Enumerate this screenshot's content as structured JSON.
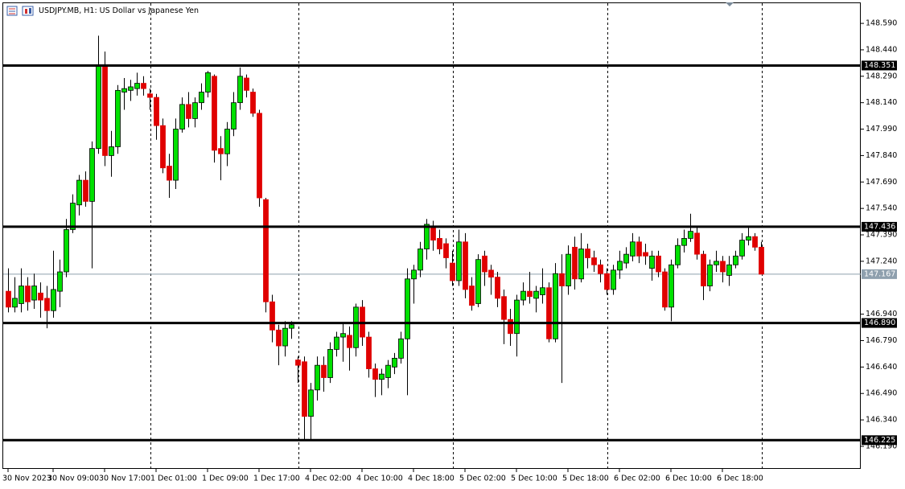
{
  "chart_data": {
    "type": "candlestick",
    "title": "USDJPY.MB, H1:  US Dollar vs Japanese Yen",
    "categories": [
      "30 Nov 2023",
      null,
      null,
      null,
      null,
      null,
      null,
      "30 Nov 09:00",
      null,
      null,
      null,
      null,
      null,
      null,
      null,
      "30 Nov 17:00",
      null,
      null,
      null,
      null,
      null,
      null,
      null,
      "1 Dec 01:00",
      null,
      null,
      null,
      null,
      null,
      null,
      null,
      "1 Dec 09:00",
      null,
      null,
      null,
      null,
      null,
      null,
      null,
      "1 Dec 17:00",
      null,
      null,
      null,
      null,
      null,
      null,
      null,
      "4 Dec 02:00",
      null,
      null,
      null,
      null,
      null,
      null,
      null,
      "4 Dec 10:00",
      null,
      null,
      null,
      null,
      null,
      null,
      null,
      "4 Dec 18:00",
      null,
      null,
      null,
      null,
      null,
      null,
      null,
      "5 Dec 02:00",
      null,
      null,
      null,
      null,
      null,
      null,
      null,
      "5 Dec 10:00",
      null,
      null,
      null,
      null,
      null,
      null,
      null,
      "5 Dec 18:00",
      null,
      null,
      null,
      null,
      null,
      null,
      null,
      "6 Dec 02:00",
      null,
      null,
      null,
      null,
      null,
      null,
      null,
      "6 Dec 10:00",
      null,
      null,
      null,
      null,
      null,
      null,
      null,
      "6 Dec 18:00",
      null,
      null,
      null,
      null,
      null,
      null
    ],
    "open": [
      147.07,
      146.98,
      147.0,
      147.1,
      147.02,
      147.06,
      147.03,
      146.96,
      147.07,
      147.18,
      147.42,
      147.56,
      147.7,
      147.58,
      147.88,
      148.35,
      147.84,
      147.89,
      148.2,
      148.21,
      148.22,
      148.25,
      148.19,
      148.17,
      148.01,
      147.78,
      147.7,
      147.99,
      148.13,
      148.05,
      148.14,
      148.2,
      148.29,
      147.88,
      147.85,
      147.99,
      148.14,
      148.28,
      148.2,
      148.08,
      147.59,
      147.01,
      146.85,
      146.76,
      146.86,
      146.68,
      146.67,
      146.36,
      146.51,
      146.65,
      146.58,
      146.74,
      146.81,
      146.82,
      146.75,
      146.98,
      146.81,
      146.63,
      146.57,
      146.58,
      146.64,
      146.69,
      146.8,
      147.14,
      147.19,
      147.31,
      147.44,
      147.37,
      147.34,
      147.23,
      147.13,
      147.35,
      147.1,
      147.0,
      147.27,
      147.19,
      147.15,
      147.04,
      146.91,
      146.83,
      147.02,
      147.07,
      147.03,
      147.05,
      147.09,
      146.8,
      147.17,
      147.1,
      147.32,
      147.14,
      147.31,
      147.26,
      147.22,
      147.17,
      147.08,
      147.19,
      147.23,
      147.27,
      147.35,
      147.29,
      147.2,
      147.27,
      147.18,
      146.98,
      147.22,
      147.33,
      147.37,
      147.4,
      147.28,
      147.1,
      147.22,
      147.24,
      147.16,
      147.22,
      147.27,
      147.36,
      147.38,
      147.32
    ],
    "high": [
      147.2,
      147.15,
      147.2,
      147.15,
      147.17,
      147.12,
      147.1,
      147.3,
      147.25,
      147.48,
      147.62,
      147.73,
      147.75,
      147.92,
      148.52,
      148.43,
      147.98,
      148.24,
      148.28,
      148.27,
      148.31,
      148.29,
      148.22,
      148.19,
      148.05,
      147.85,
      148.05,
      148.17,
      148.2,
      148.17,
      148.25,
      148.32,
      148.3,
      147.95,
      148.03,
      148.2,
      148.34,
      148.3,
      148.22,
      148.1,
      147.6,
      147.05,
      146.88,
      146.9,
      146.9,
      146.7,
      146.7,
      146.55,
      146.7,
      146.7,
      146.78,
      146.84,
      146.89,
      146.87,
      147.0,
      147.02,
      146.84,
      146.66,
      146.63,
      146.68,
      146.72,
      146.84,
      147.2,
      147.22,
      147.35,
      147.48,
      147.47,
      147.42,
      147.37,
      147.3,
      147.42,
      147.4,
      147.15,
      147.28,
      147.3,
      147.22,
      147.18,
      147.08,
      146.97,
      147.05,
      147.12,
      147.18,
      147.1,
      147.2,
      147.12,
      147.23,
      147.28,
      147.33,
      147.38,
      147.4,
      147.34,
      147.3,
      147.25,
      147.2,
      147.22,
      147.3,
      147.32,
      147.4,
      147.38,
      147.34,
      147.3,
      147.3,
      147.2,
      147.25,
      147.37,
      147.42,
      147.51,
      147.44,
      147.3,
      147.25,
      147.3,
      147.27,
      147.27,
      147.3,
      147.4,
      147.43,
      147.4,
      147.35
    ],
    "low": [
      146.95,
      146.95,
      146.95,
      146.96,
      146.97,
      146.92,
      146.86,
      146.92,
      146.98,
      147.15,
      147.4,
      147.5,
      147.55,
      147.2,
      147.85,
      147.78,
      147.72,
      147.85,
      148.1,
      148.15,
      148.18,
      148.18,
      148.1,
      147.93,
      147.74,
      147.6,
      147.65,
      147.97,
      148.0,
      148.0,
      148.1,
      148.17,
      147.8,
      147.7,
      147.78,
      147.95,
      148.1,
      148.17,
      148.06,
      147.55,
      146.95,
      146.78,
      146.65,
      146.7,
      146.8,
      146.55,
      146.23,
      146.23,
      146.45,
      146.5,
      146.55,
      146.7,
      146.67,
      146.62,
      146.7,
      146.76,
      146.58,
      146.47,
      146.48,
      146.52,
      146.6,
      146.66,
      146.48,
      147.0,
      147.15,
      147.25,
      147.3,
      147.28,
      147.2,
      147.1,
      147.1,
      147.03,
      146.96,
      146.98,
      147.1,
      147.05,
      146.98,
      146.77,
      146.76,
      146.7,
      146.99,
      147.0,
      146.95,
      147.0,
      146.78,
      146.78,
      146.55,
      147.05,
      147.08,
      147.12,
      147.2,
      147.18,
      147.12,
      147.05,
      147.05,
      147.14,
      147.2,
      147.24,
      147.23,
      147.22,
      147.13,
      147.15,
      146.96,
      146.9,
      147.2,
      147.29,
      147.35,
      147.25,
      147.02,
      147.07,
      147.18,
      147.12,
      147.1,
      147.2,
      147.25,
      147.33,
      147.3,
      147.17
    ],
    "close": [
      146.98,
      147.03,
      147.1,
      147.01,
      147.1,
      147.02,
      146.96,
      147.08,
      147.18,
      147.42,
      147.57,
      147.7,
      147.58,
      147.88,
      148.35,
      147.84,
      147.89,
      148.21,
      148.22,
      148.23,
      148.25,
      148.22,
      148.17,
      148.01,
      147.77,
      147.7,
      147.99,
      148.13,
      148.05,
      148.14,
      148.2,
      148.31,
      147.87,
      147.85,
      147.99,
      148.14,
      148.29,
      148.21,
      148.08,
      147.6,
      147.01,
      146.85,
      146.76,
      146.86,
      146.88,
      146.65,
      146.36,
      146.51,
      146.65,
      146.58,
      146.74,
      146.81,
      146.83,
      146.75,
      146.98,
      146.81,
      146.63,
      146.57,
      146.6,
      146.65,
      146.69,
      146.8,
      147.14,
      147.19,
      147.31,
      147.45,
      147.36,
      147.31,
      147.26,
      147.13,
      147.35,
      147.08,
      146.99,
      147.25,
      147.18,
      147.15,
      147.03,
      146.91,
      146.83,
      147.02,
      147.07,
      147.04,
      147.07,
      147.09,
      146.8,
      147.17,
      147.1,
      147.28,
      147.14,
      147.31,
      147.26,
      147.22,
      147.17,
      147.08,
      147.19,
      147.24,
      147.28,
      147.35,
      147.27,
      147.27,
      147.27,
      147.18,
      146.98,
      147.22,
      147.33,
      147.37,
      147.41,
      147.28,
      147.1,
      147.22,
      147.24,
      147.18,
      147.22,
      147.27,
      147.36,
      147.38,
      147.32,
      147.167
    ],
    "up_color": "#00e000",
    "down_color": "#e00000",
    "ylim": [
      146.062,
      148.709
    ],
    "yticks": [
      {
        "value": 148.59,
        "label": "148.590"
      },
      {
        "value": 148.44,
        "label": "148.440"
      },
      {
        "value": 148.29,
        "label": "148.290"
      },
      {
        "value": 148.14,
        "label": "148.140"
      },
      {
        "value": 147.99,
        "label": "147.990"
      },
      {
        "value": 147.84,
        "label": "147.840"
      },
      {
        "value": 147.69,
        "label": "147.690"
      },
      {
        "value": 147.54,
        "label": "147.540"
      },
      {
        "value": 147.39,
        "label": "147.390"
      },
      {
        "value": 147.24,
        "label": "147.240"
      },
      {
        "value": 146.94,
        "label": "146.940"
      },
      {
        "value": 146.79,
        "label": "146.790"
      },
      {
        "value": 146.64,
        "label": "146.640"
      },
      {
        "value": 146.49,
        "label": "146.490"
      },
      {
        "value": 146.34,
        "label": "146.340"
      },
      {
        "value": 146.19,
        "label": "146.190"
      }
    ],
    "hlines": [
      148.351,
      147.436,
      {
        "value": 146.89,
        "label": "146.890"
      },
      146.225
    ],
    "current_price": 147.167
  }
}
